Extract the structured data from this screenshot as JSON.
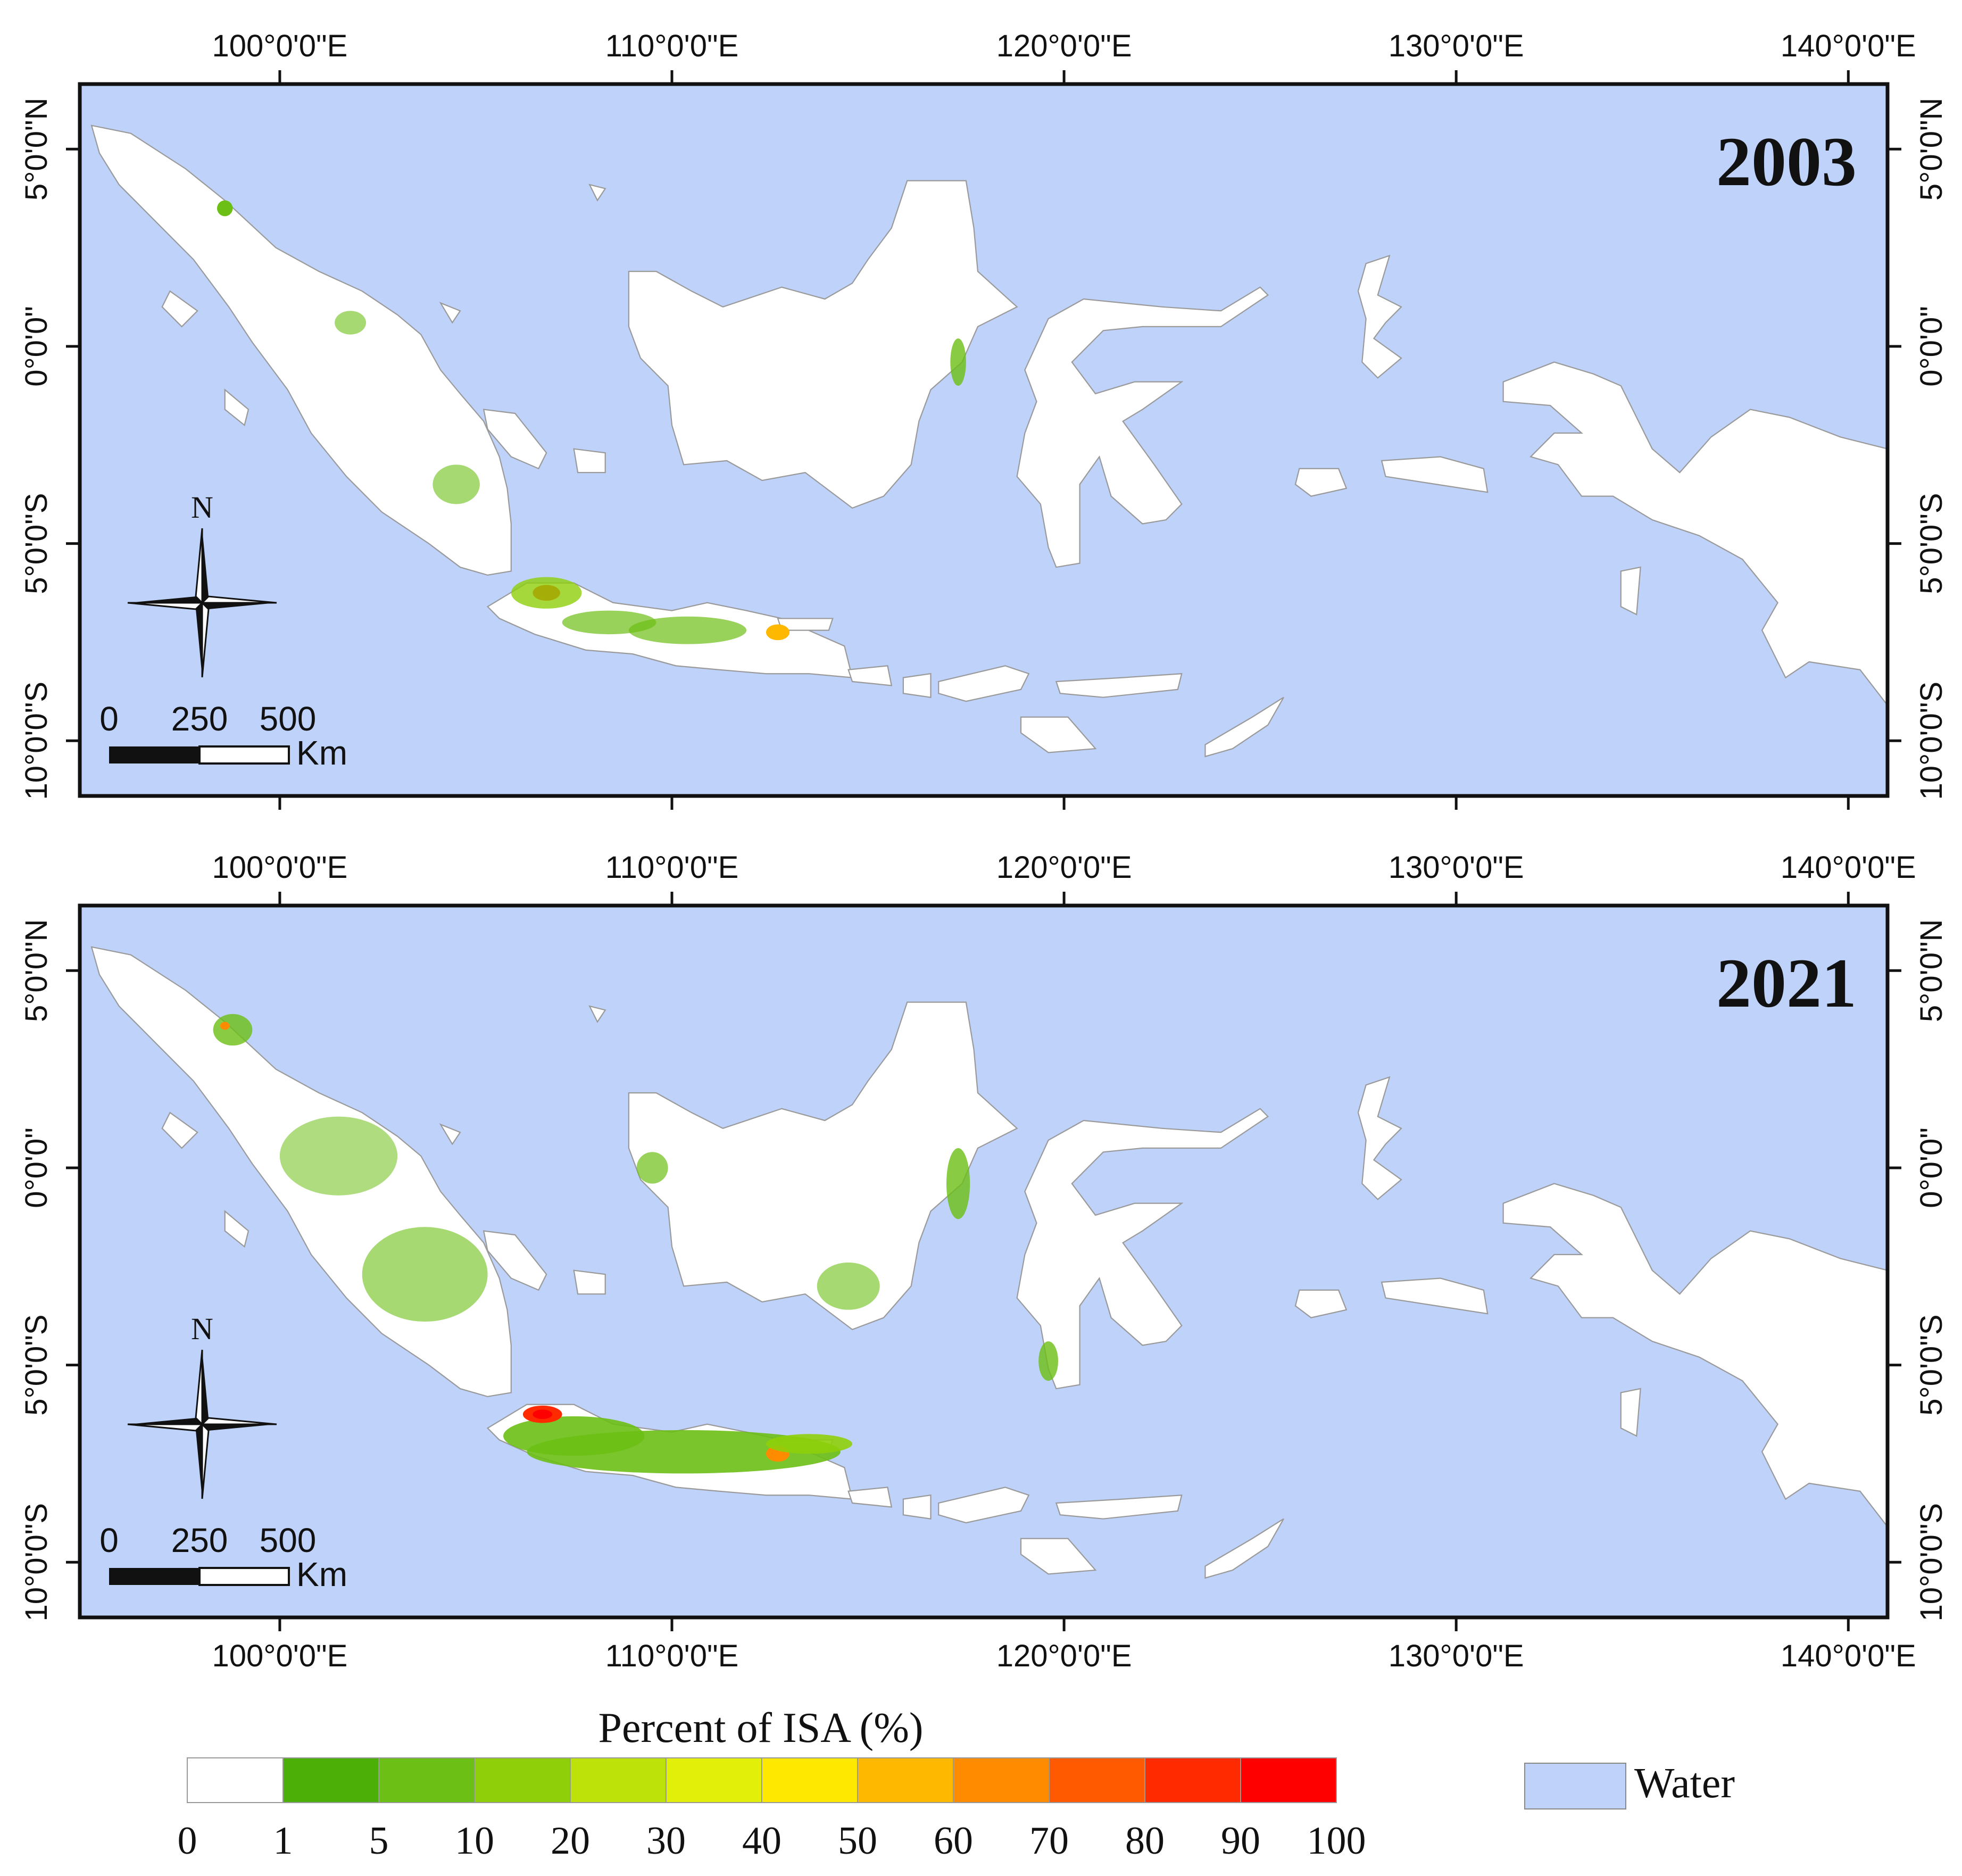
{
  "panels": [
    {
      "year": "2003"
    },
    {
      "year": "2021"
    }
  ],
  "axes": {
    "lon_ticks": [
      "100°0'0\"E",
      "110°0'0\"E",
      "120°0'0\"E",
      "130°0'0\"E",
      "140°0'0\"E"
    ],
    "lat_ticks": [
      "5°0'0\"N",
      "0°0'0\"",
      "5°0'0\"S",
      "10°0'0\"S"
    ],
    "lon_values": [
      100,
      110,
      120,
      130,
      140
    ],
    "lat_values": [
      5,
      0,
      -5,
      -10
    ]
  },
  "compass": {
    "north_label": "N"
  },
  "scale_bar": {
    "labels": [
      "0",
      "250",
      "500"
    ],
    "unit": "Km"
  },
  "legend": {
    "title": "Percent of ISA (%)",
    "bins": [
      "0",
      "1",
      "5",
      "10",
      "20",
      "30",
      "40",
      "50",
      "60",
      "70",
      "80",
      "90",
      "100"
    ],
    "colors": [
      "#ffffff",
      "#4caf08",
      "#6cbf14",
      "#8ecf0a",
      "#bde20a",
      "#e2ef08",
      "#ffe800",
      "#ffb800",
      "#ff8c00",
      "#ff5a00",
      "#ff2a00",
      "#ff0000"
    ],
    "water_label": "Water",
    "water_color": "#bed2fa"
  }
}
